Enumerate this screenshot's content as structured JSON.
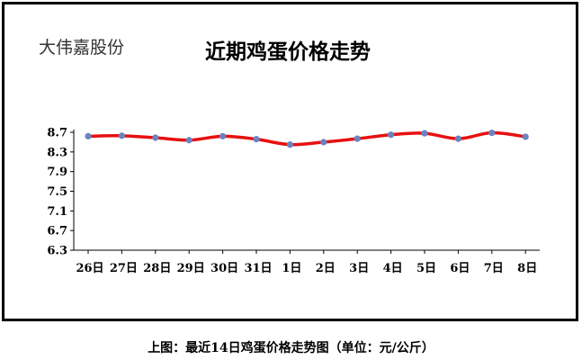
{
  "header": {
    "company": "大伟嘉股份",
    "title": "近期鸡蛋价格走势"
  },
  "caption": "上图：最近14日鸡蛋价格走势图（单位：元/公斤）",
  "colors": {
    "line": "#e81010",
    "marker": "#6b84c0",
    "frame": "#000000"
  },
  "chart_data": {
    "type": "line",
    "categories": [
      "26日",
      "27日",
      "28日",
      "29日",
      "30日",
      "31日",
      "1日",
      "2日",
      "3日",
      "4日",
      "5日",
      "6日",
      "7日",
      "8日"
    ],
    "series": [
      {
        "values": [
          8.62,
          8.63,
          8.59,
          8.54,
          8.62,
          8.56,
          8.45,
          8.5,
          8.57,
          8.65,
          8.68,
          8.57,
          8.69,
          8.61
        ]
      }
    ],
    "yticks": [
      "8.7",
      "8.3",
      "7.9",
      "7.5",
      "7.1",
      "6.7",
      "6.3"
    ],
    "ylim": [
      6.3,
      8.7
    ],
    "grid": false
  }
}
